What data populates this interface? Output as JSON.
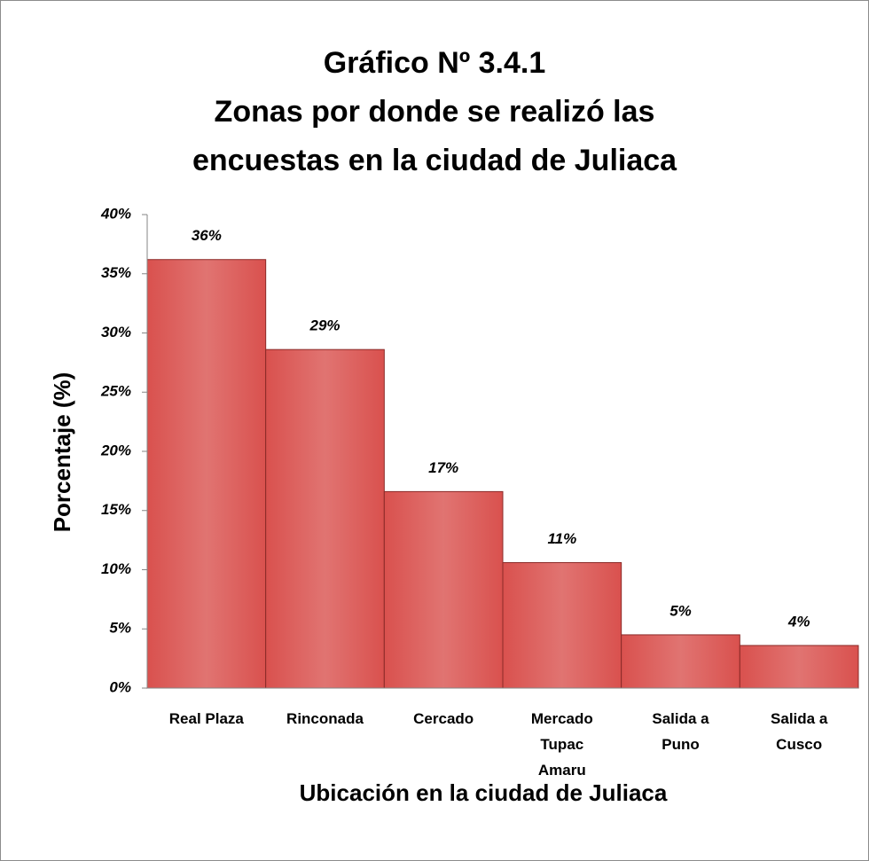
{
  "chart_data": {
    "type": "bar",
    "title": [
      "Gráfico Nº 3.4.1",
      "Zonas por donde se realizó las",
      "encuestas en la ciudad de Juliaca"
    ],
    "x_label": "Ubicación en la ciudad de Juliaca",
    "y_label": "Porcentaje (%)",
    "categories": [
      "Real Plaza",
      "Rinconada",
      "Cercado",
      "Mercado Tupac Amaru",
      "Salida a Puno",
      "Salida a Cusco"
    ],
    "values": [
      36.2,
      28.6,
      16.6,
      10.6,
      4.5,
      3.6
    ],
    "value_labels": [
      "36%",
      "29%",
      "17%",
      "11%",
      "5%",
      "4%"
    ],
    "color": "#d9514e",
    "ylim": [
      0,
      40
    ],
    "yticks": [
      {
        "value": 0,
        "label": "0%"
      },
      {
        "value": 5,
        "label": "5%"
      },
      {
        "value": 10,
        "label": "10%"
      },
      {
        "value": 15,
        "label": "15%"
      },
      {
        "value": 20,
        "label": "20%"
      },
      {
        "value": 25,
        "label": "25%"
      },
      {
        "value": 30,
        "label": "30%"
      },
      {
        "value": 35,
        "label": "35%"
      },
      {
        "value": 40,
        "label": "40%"
      }
    ],
    "grid": false
  }
}
